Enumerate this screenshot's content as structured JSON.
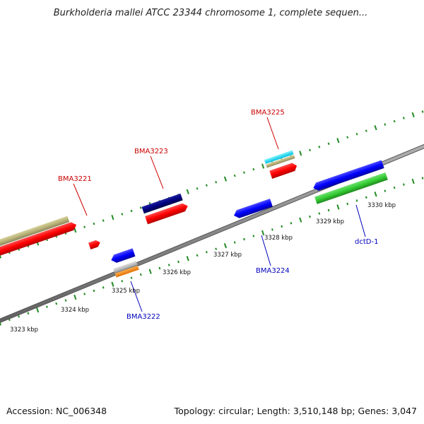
{
  "header": {
    "title": "Burkholderia mallei ATCC 23344 chromosome 1, complete sequen..."
  },
  "footer": {
    "accession": "Accession: NC_006348",
    "summary": "Topology: circular; Length: 3,510,148 bp; Genes: 3,047"
  },
  "scale": {
    "ticks": [
      {
        "label": "3323 kbp"
      },
      {
        "label": "3324 kbp"
      },
      {
        "label": "3325 kbp"
      },
      {
        "label": "3326 kbp"
      },
      {
        "label": "3327 kbp"
      },
      {
        "label": "3328 kbp"
      },
      {
        "label": "3329 kbp"
      },
      {
        "label": "3330 kbp"
      }
    ]
  },
  "genes": [
    {
      "label": "BMA3221",
      "color": "#cc0000"
    },
    {
      "label": "BMA3222",
      "color": "#0000bb"
    },
    {
      "label": "BMA3223",
      "color": "#cc0000"
    },
    {
      "label": "BMA3224",
      "color": "#0000bb"
    },
    {
      "label": "BMA3225",
      "color": "#cc0000"
    },
    {
      "label": "dctD-1",
      "color": "#0000bb"
    }
  ],
  "feature_colors": {
    "cds_forward": "#ff0000",
    "cds_reverse": "#0000ff",
    "cds_dark": "#000080",
    "rrna_tan": "#b8b27a",
    "green": "#33cc33",
    "cyan": "#00e0ff",
    "orange": "#ff8c00",
    "grey": "#c0c0c0",
    "backbone": "#888888",
    "ticks": "#228b22"
  }
}
